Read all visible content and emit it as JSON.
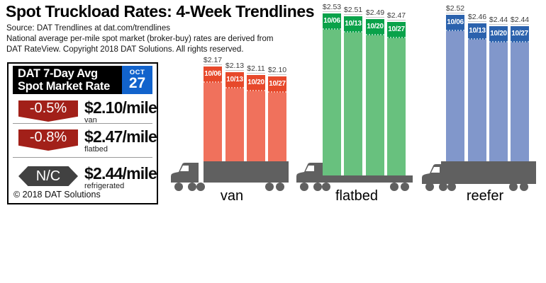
{
  "title": "Spot Truckload Rates: 4-Week Trendlines",
  "source_lines": [
    "Source: DAT Trendlines at dat.com/trendlines",
    "National average per-mile spot market (broker-buy) rates are derived from",
    "DAT RateView. Copyright 2018 DAT Solutions. All rights reserved."
  ],
  "panel": {
    "title_line1": "DAT 7-Day Avg",
    "title_line2": "Spot Market Rate",
    "date_month": "OCT",
    "date_day": "27",
    "rows": [
      {
        "change": "-0.5%",
        "direction": "down",
        "rate": "$2.10/mile",
        "label": "van"
      },
      {
        "change": "-0.8%",
        "direction": "down",
        "rate": "$2.47/mile",
        "label": "flatbed"
      },
      {
        "change": "N/C",
        "direction": "unchanged",
        "rate": "$2.44/mile",
        "label": "refrigerated"
      }
    ],
    "copyright": "© 2018 DAT Solutions",
    "colors": {
      "header_bg": "#000000",
      "date_bg": "#1263CC",
      "down_badge": "#A22019",
      "neutral_badge": "#414141"
    }
  },
  "chart_data": {
    "type": "bar",
    "title": "Spot Truckload Rates: 4-Week Trendlines",
    "unit": "USD per mile",
    "value_prefix": "$",
    "categories": [
      "10/06",
      "10/13",
      "10/20",
      "10/27"
    ],
    "series": [
      {
        "name": "van",
        "values": [
          2.17,
          2.13,
          2.11,
          2.1
        ],
        "header_color": "#E7492B",
        "body_color": "#F0715C"
      },
      {
        "name": "flatbed",
        "values": [
          2.53,
          2.51,
          2.49,
          2.47
        ],
        "header_color": "#0AA24A",
        "body_color": "#68C17E"
      },
      {
        "name": "reefer",
        "values": [
          2.52,
          2.46,
          2.44,
          2.44
        ],
        "header_color": "#2B62AD",
        "body_color": "#8197CB"
      }
    ],
    "legend_position": "none",
    "grid": false,
    "value_axis_hidden": true,
    "ylim": [
      0,
      2.62
    ],
    "truck_color": "#606060"
  }
}
